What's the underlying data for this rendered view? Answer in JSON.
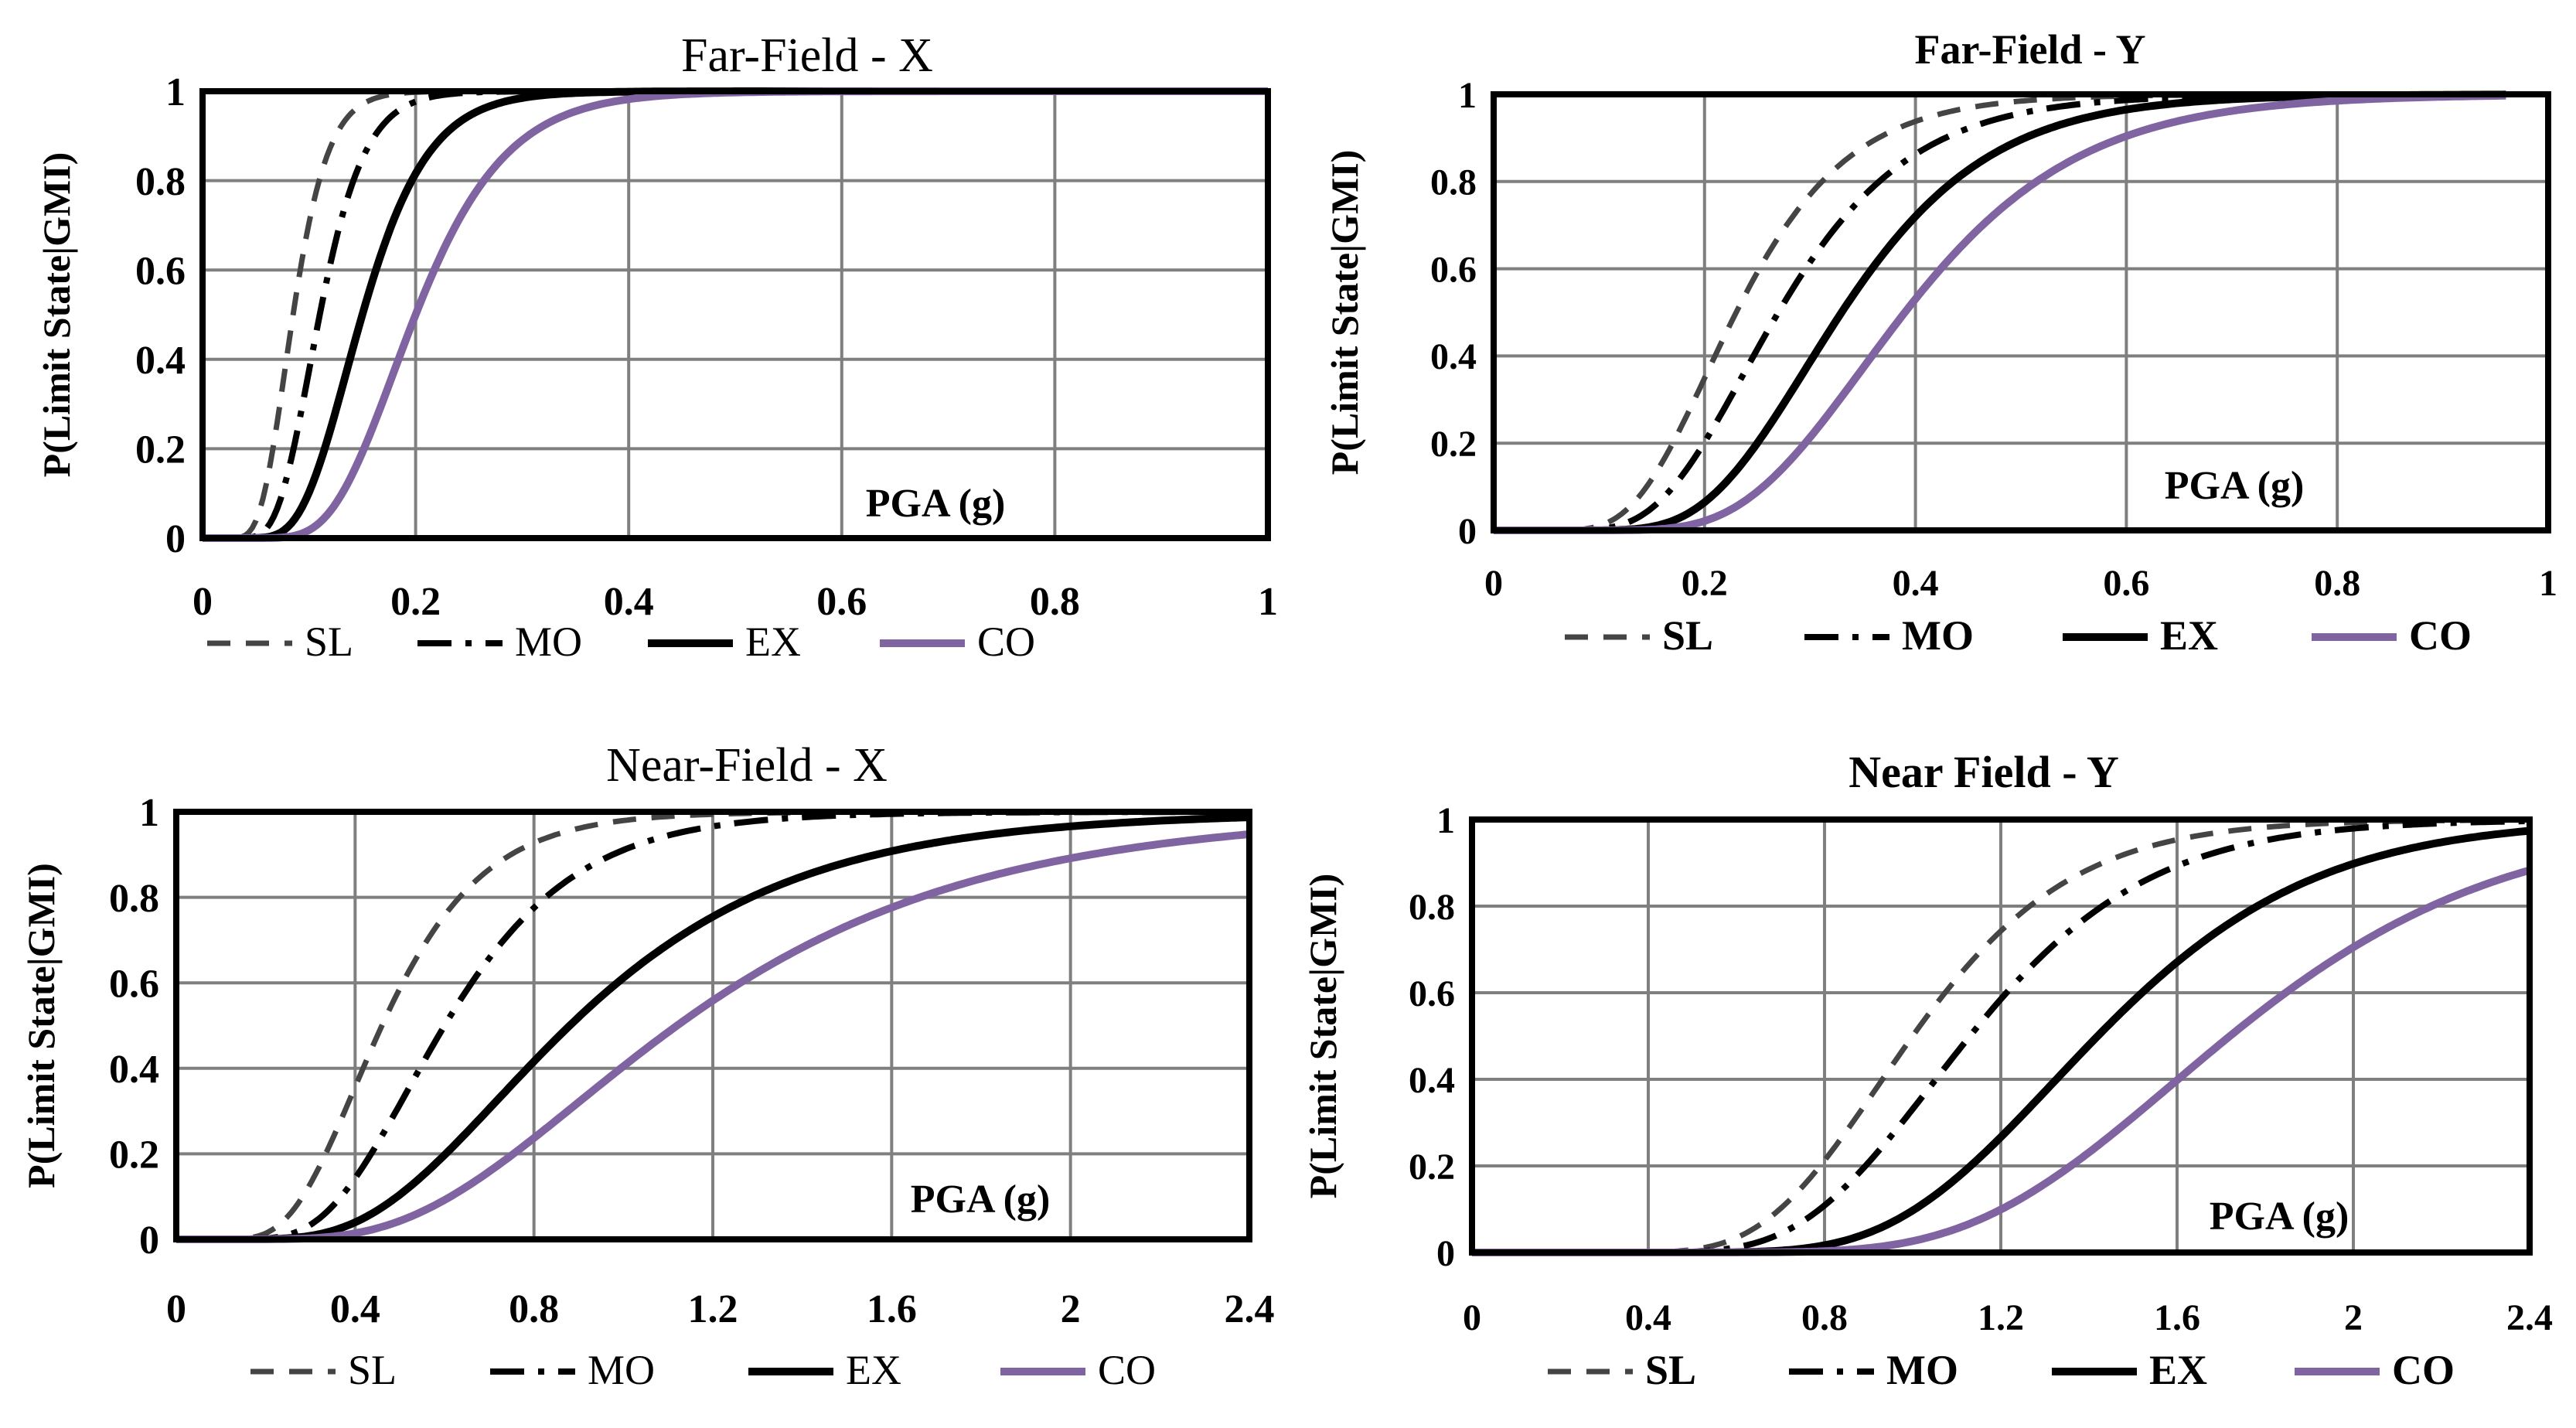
{
  "chart_data": [
    {
      "type": "line",
      "title": "Far-Field - X",
      "xlabel": "PGA (g)",
      "ylabel": "P(Limit State|GMI)",
      "xlim": [
        0,
        1
      ],
      "ylim": [
        0,
        1
      ],
      "xticks": [
        "0",
        "0.2",
        "0.4",
        "0.6",
        "0.8",
        "1"
      ],
      "yticks": [
        "0",
        "0.2",
        "0.4",
        "0.6",
        "0.8",
        "1"
      ],
      "grid": true,
      "legend_position": "bottom",
      "series": [
        {
          "name": "SL",
          "style": "dashed",
          "color": "#444444",
          "median": 0.085,
          "beta": 0.3,
          "xmax": 1.0
        },
        {
          "name": "MO",
          "style": "dashdot",
          "color": "#000000",
          "median": 0.11,
          "beta": 0.3,
          "xmax": 1.0
        },
        {
          "name": "EX",
          "style": "solid",
          "color": "#000000",
          "median": 0.15,
          "beta": 0.32,
          "xmax": 1.0
        },
        {
          "name": "CO",
          "style": "solid",
          "color": "#8064a2",
          "median": 0.2,
          "beta": 0.33,
          "xmax": 1.0
        }
      ]
    },
    {
      "type": "line",
      "title": "Far-Field - Y",
      "xlabel": "PGA (g)",
      "ylabel": "P(Limit State|GMI)",
      "xlim": [
        0,
        1
      ],
      "ylim": [
        0,
        1
      ],
      "xticks": [
        "0",
        "0.2",
        "0.4",
        "0.6",
        "0.8",
        "1"
      ],
      "yticks": [
        "0",
        "0.2",
        "0.4",
        "0.6",
        "0.8",
        "1"
      ],
      "grid": true,
      "legend_position": "bottom",
      "series": [
        {
          "name": "SL",
          "style": "dashed",
          "color": "#444444",
          "median": 0.23,
          "beta": 0.36,
          "xmax": 0.96
        },
        {
          "name": "MO",
          "style": "dashdot",
          "color": "#000000",
          "median": 0.27,
          "beta": 0.36,
          "xmax": 0.96
        },
        {
          "name": "EX",
          "style": "solid",
          "color": "#000000",
          "median": 0.33,
          "beta": 0.33,
          "xmax": 0.96
        },
        {
          "name": "CO",
          "style": "solid",
          "color": "#8064a2",
          "median": 0.39,
          "beta": 0.33,
          "xmax": 0.96
        }
      ]
    },
    {
      "type": "line",
      "title": "Near-Field - X",
      "xlabel": "PGA (g)",
      "ylabel": "P(Limit State|GMI)",
      "xlim": [
        0,
        2.4
      ],
      "ylim": [
        0,
        1
      ],
      "xticks": [
        "0",
        "0.4",
        "0.8",
        "1.2",
        "1.6",
        "2",
        "2.4"
      ],
      "yticks": [
        "0",
        "0.2",
        "0.4",
        "0.6",
        "0.8",
        "1"
      ],
      "grid": true,
      "legend_position": "bottom",
      "series": [
        {
          "name": "SL",
          "style": "dashed",
          "color": "#444444",
          "median": 0.46,
          "beta": 0.38,
          "xmax": 2.4
        },
        {
          "name": "MO",
          "style": "dashdot",
          "color": "#000000",
          "median": 0.6,
          "beta": 0.38,
          "xmax": 2.4
        },
        {
          "name": "EX",
          "style": "solid",
          "color": "#000000",
          "median": 0.88,
          "beta": 0.45,
          "xmax": 2.4
        },
        {
          "name": "CO",
          "style": "solid",
          "color": "#8064a2",
          "median": 1.12,
          "beta": 0.47,
          "xmax": 2.4
        }
      ]
    },
    {
      "type": "line",
      "title": "Near Field  - Y",
      "xlabel": "PGA (g)",
      "ylabel": "P(Limit State|GMI)",
      "xlim": [
        0,
        2.4
      ],
      "ylim": [
        0,
        1
      ],
      "xticks": [
        "0",
        "0.4",
        "0.8",
        "1.2",
        "1.6",
        "2",
        "2.4"
      ],
      "yticks": [
        "0",
        "0.2",
        "0.4",
        "0.6",
        "0.8",
        "1"
      ],
      "grid": true,
      "legend_position": "bottom",
      "series": [
        {
          "name": "SL",
          "style": "dashed",
          "color": "#444444",
          "median": 1.0,
          "beta": 0.28,
          "xmax": 2.4
        },
        {
          "name": "MO",
          "style": "dashdot",
          "color": "#000000",
          "median": 1.13,
          "beta": 0.28,
          "xmax": 2.4
        },
        {
          "name": "EX",
          "style": "solid",
          "color": "#000000",
          "median": 1.42,
          "beta": 0.27,
          "xmax": 2.4
        },
        {
          "name": "CO",
          "style": "solid",
          "color": "#8064a2",
          "median": 1.72,
          "beta": 0.28,
          "xmax": 2.4
        }
      ]
    }
  ]
}
